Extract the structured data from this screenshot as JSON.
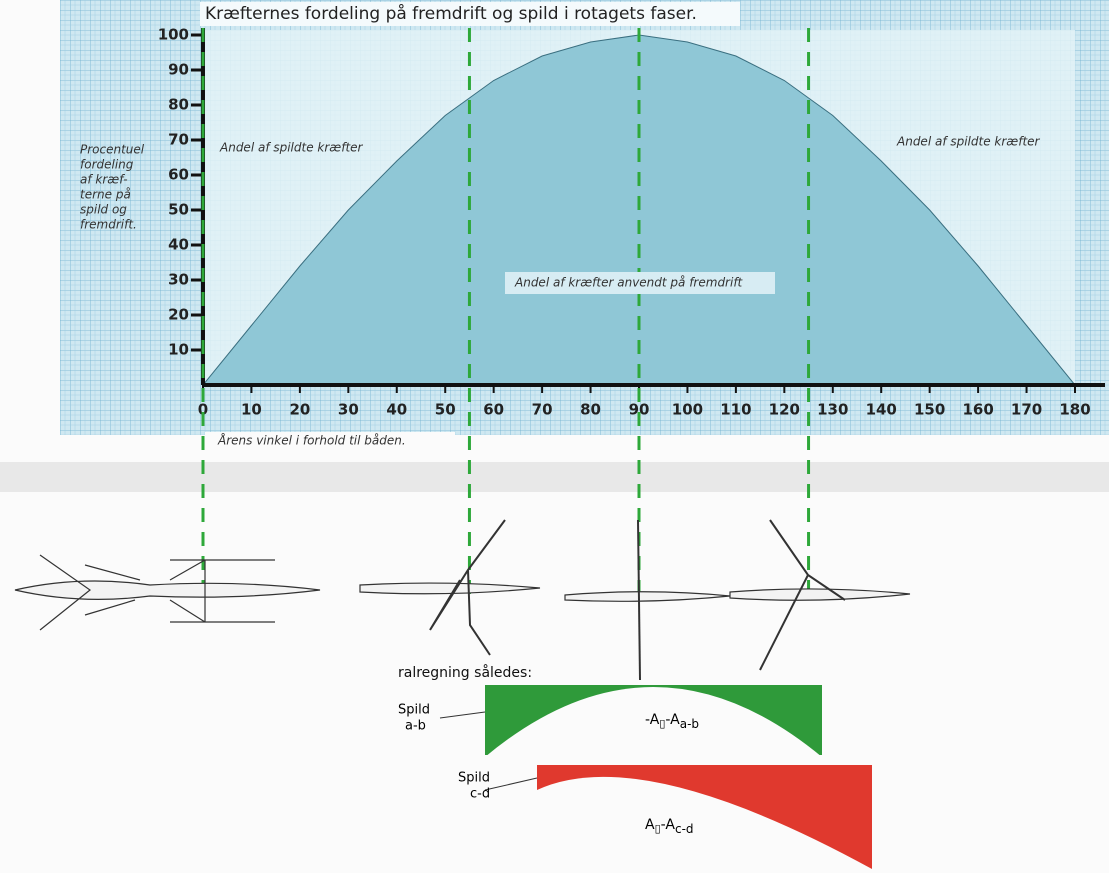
{
  "chart_data": {
    "type": "area",
    "title": "Kræfternes fordeling på fremdrift og spild i rotagets faser.",
    "y_label_lines": [
      "Procentuel",
      "fordeling",
      "af kræf-",
      "terne på",
      "spild og",
      "fremdrift."
    ],
    "x_label": "Årens vinkel i forhold til båden.",
    "annotations": [
      "Andel af spildte kræfter",
      "Andel af spildte kræfter",
      "Andel af kræfter anvendt på fremdrift"
    ],
    "x": [
      0,
      10,
      20,
      30,
      40,
      50,
      60,
      70,
      80,
      90,
      100,
      110,
      120,
      130,
      140,
      150,
      160,
      170,
      180
    ],
    "values": [
      0,
      17,
      34,
      50,
      64,
      77,
      87,
      94,
      98,
      100,
      98,
      94,
      87,
      77,
      64,
      50,
      34,
      17,
      0
    ],
    "color": "#8fc7d6",
    "xlim": [
      0,
      180
    ],
    "ylim": [
      0,
      100
    ],
    "xticks": [
      0,
      10,
      20,
      30,
      40,
      50,
      60,
      70,
      80,
      90,
      100,
      110,
      120,
      130,
      140,
      150,
      160,
      170,
      180
    ],
    "yticks": [
      10,
      20,
      30,
      40,
      50,
      60,
      70,
      80,
      90,
      100
    ],
    "vlines": [
      0,
      55,
      90,
      125
    ],
    "vline_color": "#2ea83a"
  },
  "lower": {
    "heading": "ralregning således:",
    "green": {
      "label": "Spild",
      "sub": "a-b",
      "formula": [
        "-A",
        "▯",
        "-A",
        "a-b"
      ]
    },
    "red": {
      "label": "Spild",
      "sub": "c-d",
      "formula": [
        "A",
        "▯",
        "-A",
        "c-d"
      ]
    }
  }
}
